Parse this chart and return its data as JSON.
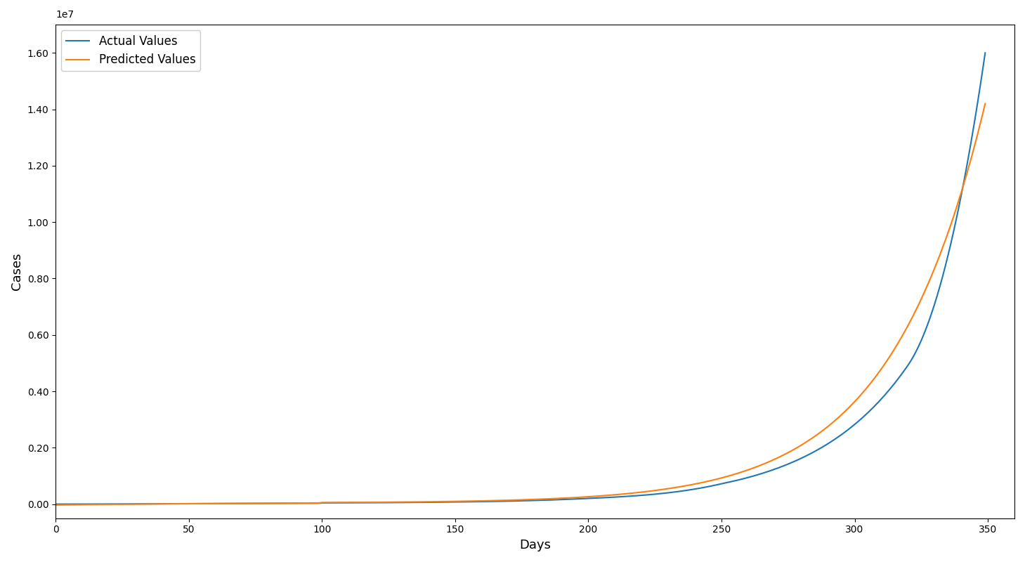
{
  "xlabel": "Days",
  "ylabel": "Cases",
  "actual_color": "#1f77b4",
  "predicted_color": "#ff7f0e",
  "legend_actual": "Actual Values",
  "legend_predicted": "Predicted Values",
  "figsize": [
    14.59,
    8.0
  ],
  "dpi": 100
}
